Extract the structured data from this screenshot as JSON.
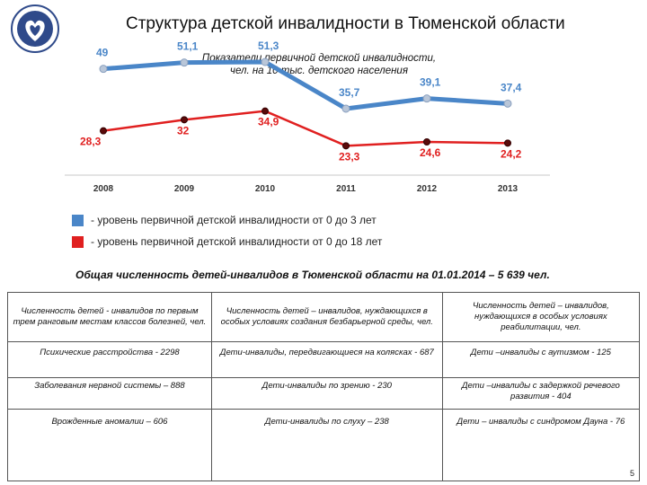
{
  "title": "Структура  детской инвалидности в Тюменской области",
  "chart_data": {
    "type": "line",
    "title": "Показатели первичной детской  инвалидности, чел. на 10 тыс. детского населения",
    "title_lines": [
      "Показатели первичной детской  инвалидности,",
      "чел. на 10 тыс. детского населения"
    ],
    "categories": [
      "2008",
      "2009",
      "2010",
      "2011",
      "2012",
      "2013"
    ],
    "series": [
      {
        "name": "- уровень первичной детской инвалидности от 0 до 3 лет",
        "color": "#4a86c8",
        "values": [
          49,
          51.1,
          51.3,
          35.7,
          39.1,
          37.4
        ],
        "labels": [
          "49",
          "51,1",
          "51,3",
          "35,7",
          "39,1",
          "37,4"
        ]
      },
      {
        "name": "- уровень первичной детской инвалидности от 0 до 18 лет",
        "color": "#e02020",
        "values": [
          28.3,
          32,
          34.9,
          23.3,
          24.6,
          24.2
        ],
        "labels": [
          "28,3",
          "32",
          "34,9",
          "23,3",
          "24,6",
          "24,2"
        ]
      }
    ],
    "ylim": [
      15,
      60
    ],
    "grid": false,
    "legend": "bottom-left"
  },
  "total_line": "Общая численность  детей-инвалидов в Тюменской области  на 01.01.2014 –  5 639 чел.",
  "table": {
    "headers": [
      "Численность детей - инвалидов по первым трем ранговым местам классов болезней, чел.",
      "Численность детей – инвалидов, нуждающихся в особых условиях создания безбарьерной среды, чел.",
      "Численность детей – инвалидов, нуждающихся в особых условиях реабилитации, чел."
    ],
    "rows": [
      [
        "Психические расстройства - 2298",
        "Дети-инвалиды, передвигающиеся на колясках - 687",
        "Дети –инвалиды с аутизмом -  125"
      ],
      [
        "Заболевания нервной системы – 888",
        "Дети-инвалиды по зрению - 230",
        "Дети –инвалиды с задержкой речевого развития - 404"
      ],
      [
        "Врожденные аномалии – 606",
        "Дети-инвалиды по слуху – 238",
        "Дети – инвалиды с синдромом Дауна - 76"
      ]
    ]
  },
  "page_number": "5"
}
